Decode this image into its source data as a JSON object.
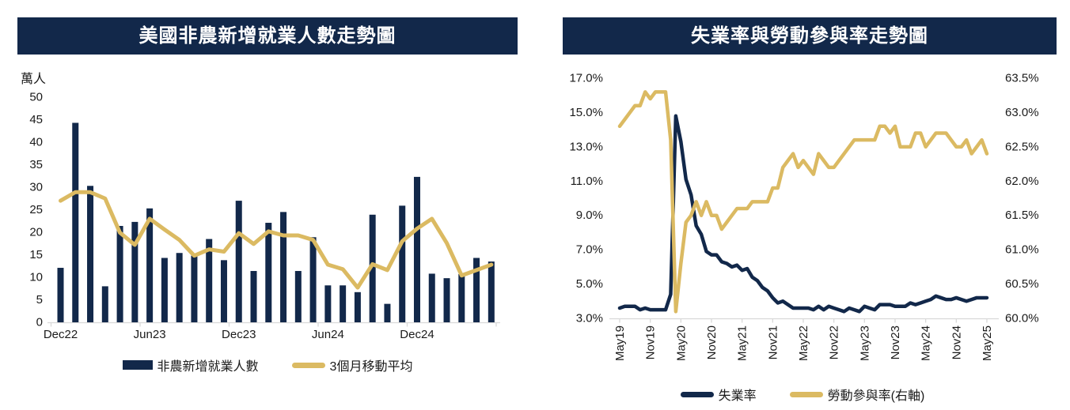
{
  "colors": {
    "navy": "#12284A",
    "gold": "#DBBA62",
    "axis_line": "#D9D9D9",
    "axis_text": "#1a1a1a",
    "title_text": "#ffffff"
  },
  "charts": [
    {
      "id": "payrolls",
      "title": "美國非農新增就業人數走勢圖",
      "unit_label": "萬人",
      "legend": [
        {
          "label": "非農新增就業人數",
          "type": "bar",
          "color": "#12284A"
        },
        {
          "label": "3個月移動平均",
          "type": "line",
          "color": "#DBBA62"
        }
      ],
      "chart_data": {
        "type": "bar",
        "title": "美國非農新增就業人數走勢圖",
        "ylabel": "萬人",
        "ylim": [
          0,
          50
        ],
        "y_ticks": [
          50,
          45,
          40,
          35,
          30,
          25,
          20,
          15,
          10,
          5,
          0
        ],
        "grid": false,
        "legend_position": "bottom",
        "categories": [
          "Dec22",
          "Jan23",
          "Feb23",
          "Mar23",
          "Apr23",
          "May23",
          "Jun23",
          "Jul23",
          "Aug23",
          "Sep23",
          "Oct23",
          "Nov23",
          "Dec23",
          "Jan24",
          "Feb24",
          "Mar24",
          "Apr24",
          "May24",
          "Jun24",
          "Jul24",
          "Aug24",
          "Sep24",
          "Oct24",
          "Nov24",
          "Dec24",
          "Jan25",
          "Feb25",
          "Mar25",
          "Apr25",
          "May25"
        ],
        "x_tick_labels": [
          "Dec22",
          "Jun23",
          "Dec23",
          "Jun24",
          "Dec24"
        ],
        "x_tick_indices": [
          0,
          6,
          12,
          18,
          24
        ],
        "series": [
          {
            "name": "非農新增就業人數",
            "type": "bar",
            "color": "#12284A",
            "values": [
              12.1,
              44.3,
              30.3,
              8.0,
              21.4,
              22.3,
              25.3,
              14.3,
              15.4,
              14.8,
              18.5,
              13.8,
              27.0,
              11.4,
              22.1,
              24.5,
              11.4,
              18.9,
              8.2,
              8.2,
              6.7,
              23.9,
              4.1,
              25.9,
              32.3,
              10.8,
              9.8,
              10.7,
              14.3,
              13.5
            ]
          },
          {
            "name": "3個月移動平均",
            "type": "line",
            "color": "#DBBA62",
            "values": [
              27.0,
              28.9,
              28.9,
              27.5,
              19.9,
              17.2,
              23.0,
              20.6,
              18.3,
              14.8,
              16.2,
              15.7,
              19.8,
              17.4,
              20.2,
              19.3,
              19.3,
              18.3,
              12.8,
              11.8,
              7.7,
              12.9,
              11.6,
              18.0,
              20.8,
              23.0,
              17.6,
              10.4,
              11.6,
              12.8
            ]
          }
        ]
      }
    },
    {
      "id": "rates",
      "title": "失業率與勞動參與率走勢圖",
      "legend": [
        {
          "label": "失業率",
          "type": "line",
          "color": "#12284A"
        },
        {
          "label": "勞動參與率(右軸)",
          "type": "line",
          "color": "#DBBA62"
        }
      ],
      "chart_data": {
        "type": "line",
        "title": "失業率與勞動參與率走勢圖",
        "grid": false,
        "legend_position": "bottom",
        "left_axis": {
          "ylim": [
            3.0,
            17.0
          ],
          "ticks": [
            17.0,
            15.0,
            13.0,
            11.0,
            9.0,
            7.0,
            5.0,
            3.0
          ],
          "format": "percent1"
        },
        "right_axis": {
          "ylim": [
            60.0,
            63.5
          ],
          "ticks": [
            63.5,
            63.0,
            62.5,
            62.0,
            61.5,
            61.0,
            60.5,
            60.0
          ],
          "format": "percent1"
        },
        "x_tick_labels": [
          "May19",
          "Nov19",
          "May20",
          "Nov20",
          "May21",
          "Nov21",
          "May22",
          "Nov22",
          "May23",
          "Nov23",
          "May24",
          "Nov24",
          "May25"
        ],
        "x_tick_every": 6,
        "categories": [
          "May19",
          "Jun19",
          "Jul19",
          "Aug19",
          "Sep19",
          "Oct19",
          "Nov19",
          "Dec19",
          "Jan20",
          "Feb20",
          "Mar20",
          "Apr20",
          "May20",
          "Jun20",
          "Jul20",
          "Aug20",
          "Sep20",
          "Oct20",
          "Nov20",
          "Dec20",
          "Jan21",
          "Feb21",
          "Mar21",
          "Apr21",
          "May21",
          "Jun21",
          "Jul21",
          "Aug21",
          "Sep21",
          "Oct21",
          "Nov21",
          "Dec21",
          "Jan22",
          "Feb22",
          "Mar22",
          "Apr22",
          "May22",
          "Jun22",
          "Jul22",
          "Aug22",
          "Sep22",
          "Oct22",
          "Nov22",
          "Dec22",
          "Jan23",
          "Feb23",
          "Mar23",
          "Apr23",
          "May23",
          "Jun23",
          "Jul23",
          "Aug23",
          "Sep23",
          "Oct23",
          "Nov23",
          "Dec23",
          "Jan24",
          "Feb24",
          "Mar24",
          "Apr24",
          "May24",
          "Jun24",
          "Jul24",
          "Aug24",
          "Sep24",
          "Oct24",
          "Nov24",
          "Dec24",
          "Jan25",
          "Feb25",
          "Mar25",
          "Apr25",
          "May25"
        ],
        "series": [
          {
            "name": "失業率",
            "axis": "left",
            "color": "#12284A",
            "values": [
              3.6,
              3.7,
              3.7,
              3.7,
              3.5,
              3.6,
              3.5,
              3.5,
              3.5,
              3.5,
              4.4,
              14.8,
              13.3,
              11.1,
              10.2,
              8.4,
              7.9,
              6.9,
              6.7,
              6.7,
              6.3,
              6.2,
              6.0,
              6.1,
              5.8,
              5.9,
              5.4,
              5.2,
              4.8,
              4.6,
              4.2,
              3.9,
              4.0,
              3.8,
              3.6,
              3.6,
              3.6,
              3.6,
              3.5,
              3.7,
              3.5,
              3.7,
              3.6,
              3.5,
              3.4,
              3.6,
              3.5,
              3.4,
              3.7,
              3.6,
              3.5,
              3.8,
              3.8,
              3.8,
              3.7,
              3.7,
              3.7,
              3.9,
              3.8,
              3.9,
              4.0,
              4.1,
              4.3,
              4.2,
              4.1,
              4.1,
              4.2,
              4.1,
              4.0,
              4.1,
              4.2,
              4.2,
              4.2
            ]
          },
          {
            "name": "勞動參與率(右軸)",
            "axis": "right",
            "color": "#DBBA62",
            "values": [
              62.8,
              62.9,
              63.0,
              63.1,
              63.1,
              63.3,
              63.2,
              63.3,
              63.3,
              63.3,
              62.6,
              60.1,
              60.8,
              61.4,
              61.5,
              61.7,
              61.5,
              61.7,
              61.5,
              61.5,
              61.3,
              61.4,
              61.5,
              61.6,
              61.6,
              61.6,
              61.7,
              61.7,
              61.7,
              61.7,
              61.9,
              61.9,
              62.2,
              62.3,
              62.4,
              62.2,
              62.3,
              62.2,
              62.1,
              62.4,
              62.3,
              62.2,
              62.2,
              62.3,
              62.4,
              62.5,
              62.6,
              62.6,
              62.6,
              62.6,
              62.6,
              62.8,
              62.8,
              62.7,
              62.8,
              62.5,
              62.5,
              62.5,
              62.7,
              62.7,
              62.5,
              62.6,
              62.7,
              62.7,
              62.7,
              62.6,
              62.5,
              62.5,
              62.6,
              62.4,
              62.5,
              62.6,
              62.4
            ]
          }
        ]
      }
    }
  ]
}
